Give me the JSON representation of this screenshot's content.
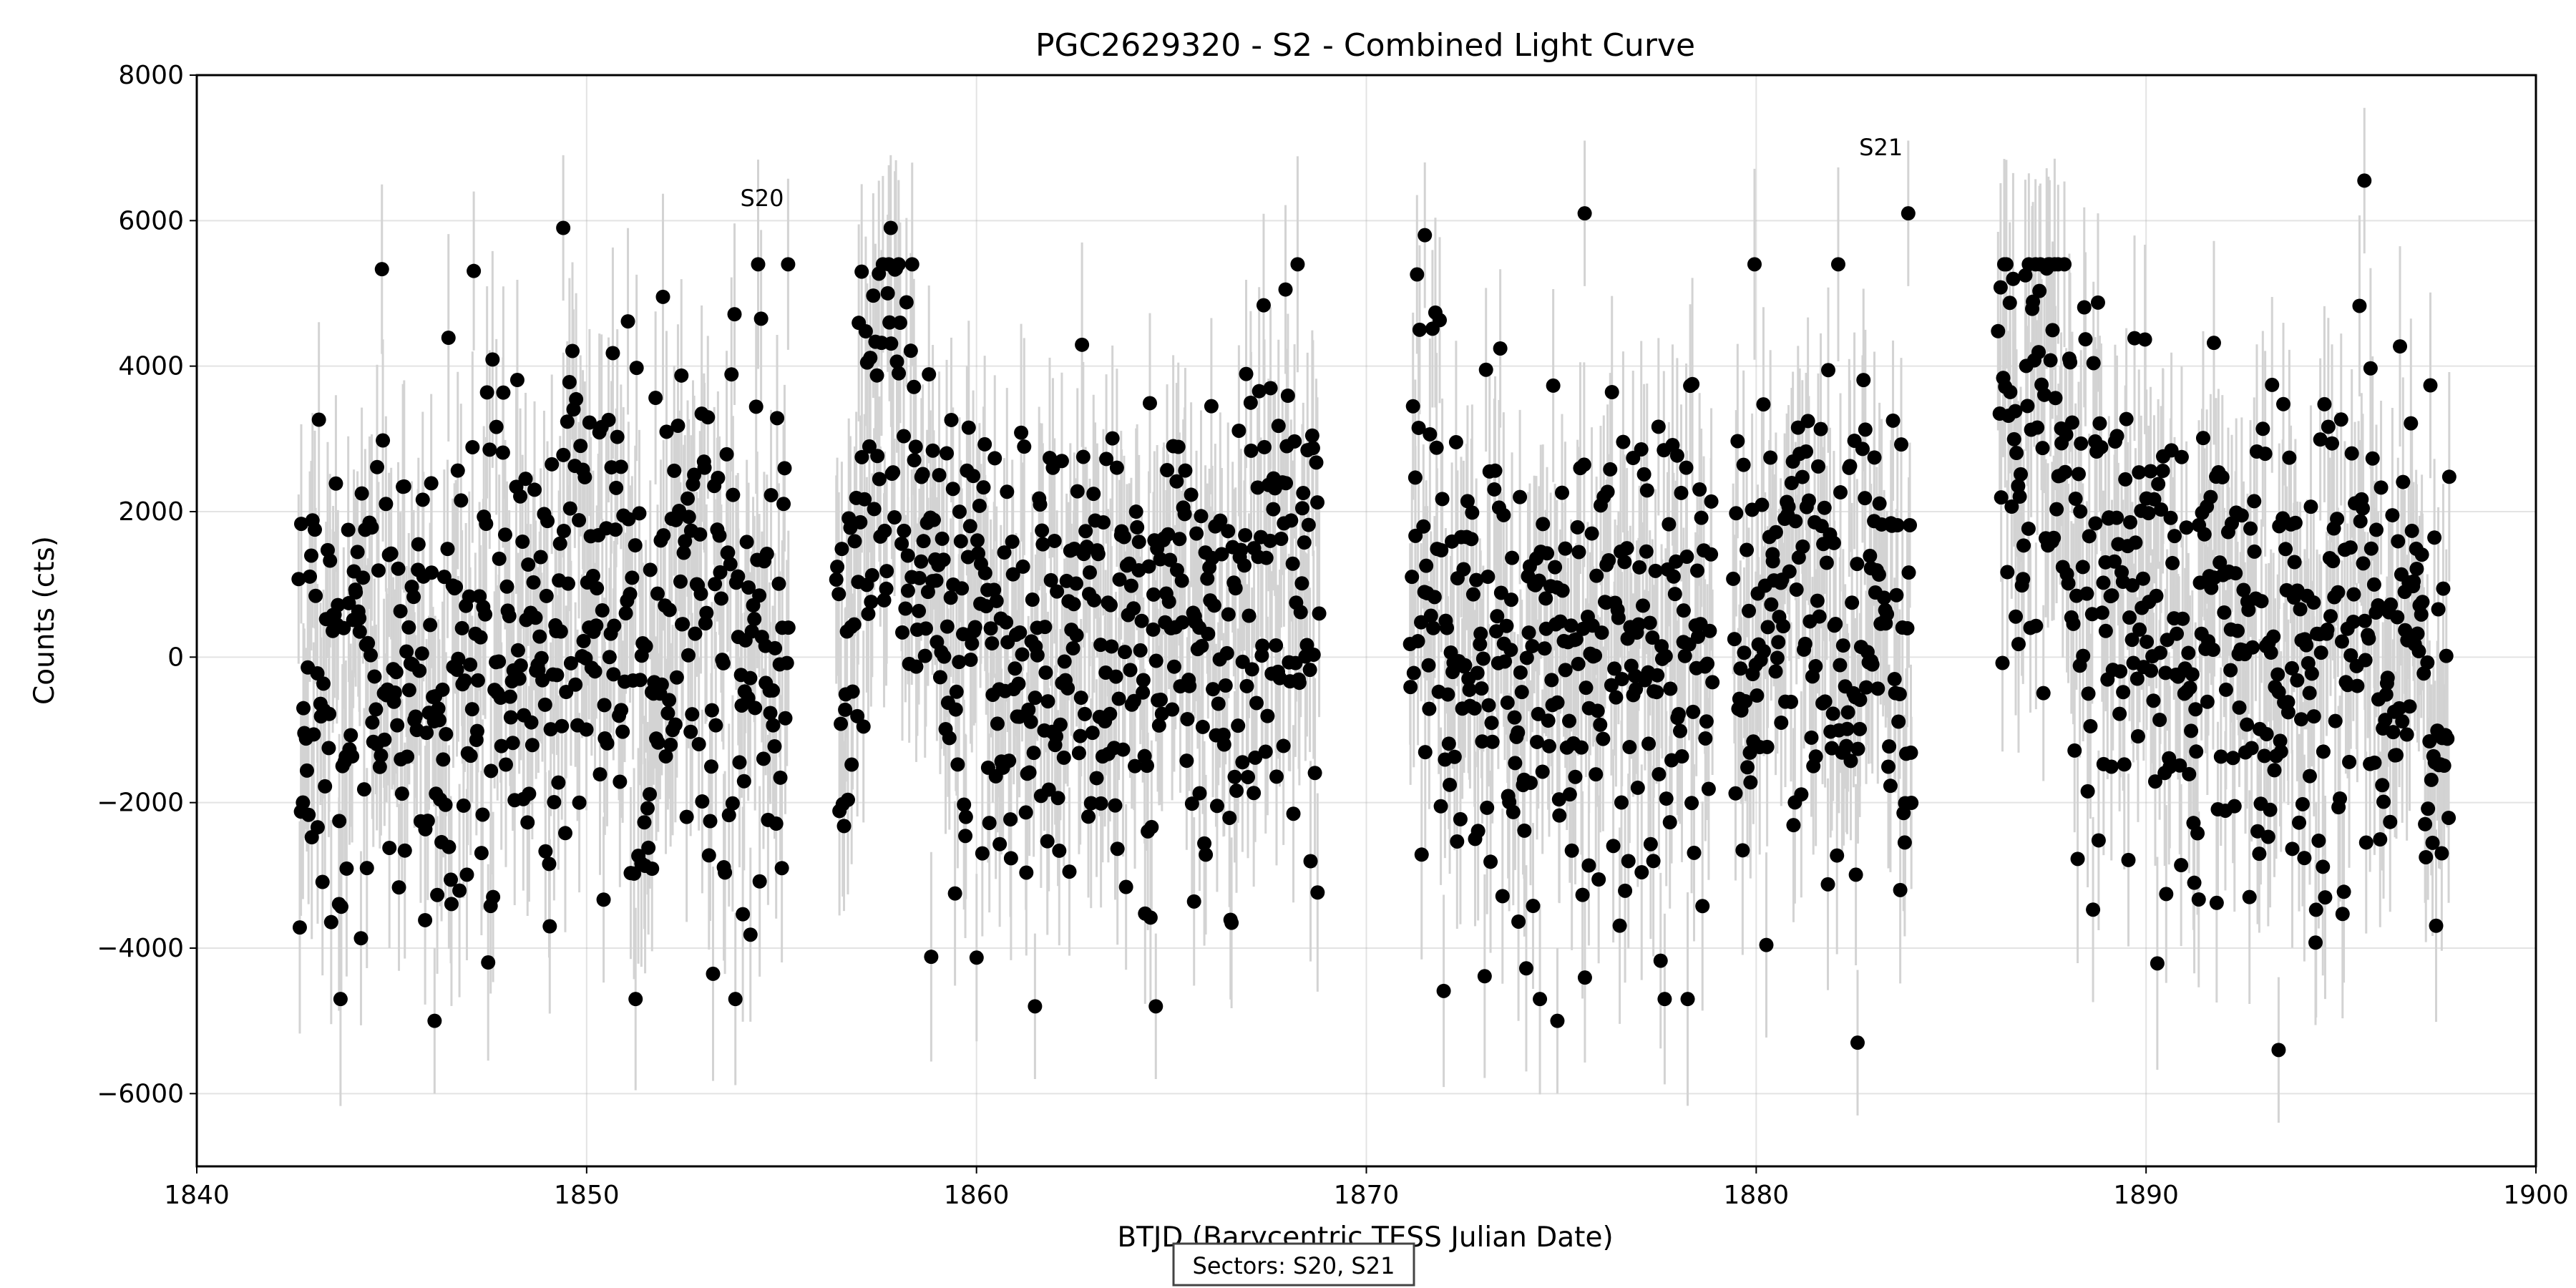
{
  "chart_data": {
    "type": "scatter",
    "title": "PGC2629320 - S2 - Combined Light Curve",
    "xlabel": "BTJD (Barycentric TESS Julian Date)",
    "ylabel": "Counts (cts)",
    "xlim": [
      1840,
      1900
    ],
    "ylim": [
      -7000,
      8000
    ],
    "xticks": [
      1840,
      1850,
      1860,
      1870,
      1880,
      1890,
      1900
    ],
    "yticks": [
      -6000,
      -4000,
      -2000,
      0,
      2000,
      4000,
      6000,
      8000
    ],
    "grid": true,
    "marker_color": "#000000",
    "errorbar_color": "#d3d3d3",
    "annotations": [
      {
        "text": "S20",
        "x": 1854.5,
        "y": 6200
      },
      {
        "text": "S21",
        "x": 1883.2,
        "y": 6900
      }
    ],
    "legend": {
      "text": "Sectors: S20, S21",
      "placement": "bottom-center"
    },
    "segments": [
      {
        "start": 1842.6,
        "end": 1855.2,
        "trend": [
          [
            1842.6,
            -300
          ],
          [
            1847,
            -200
          ],
          [
            1850,
            300
          ],
          [
            1855.2,
            0
          ]
        ],
        "spread": 2100,
        "err": 1200
      },
      {
        "start": 1856.4,
        "end": 1868.8,
        "trend": [
          [
            1856.4,
            0
          ],
          [
            1857.5,
            3500
          ],
          [
            1859,
            800
          ],
          [
            1861,
            -400
          ],
          [
            1865,
            300
          ],
          [
            1868.8,
            1500
          ]
        ],
        "spread": 2000,
        "err": 1200
      },
      {
        "start": 1871.1,
        "end": 1878.9,
        "trend": [
          [
            1871.1,
            1500
          ],
          [
            1873,
            0
          ],
          [
            1876,
            0
          ],
          [
            1878.9,
            0
          ]
        ],
        "spread": 2100,
        "err": 1200
      },
      {
        "start": 1879.4,
        "end": 1884.0,
        "trend": [
          [
            1879.4,
            0
          ],
          [
            1881,
            1000
          ],
          [
            1884.0,
            0
          ]
        ],
        "spread": 2000,
        "err": 1200
      },
      {
        "start": 1886.2,
        "end": 1897.8,
        "trend": [
          [
            1886.2,
            3500
          ],
          [
            1887.5,
            3000
          ],
          [
            1889,
            1000
          ],
          [
            1893,
            0
          ],
          [
            1897.8,
            -300
          ]
        ],
        "spread": 2000,
        "err": 1200
      }
    ],
    "outliers": [
      {
        "x": 1849.4,
        "y": 5900
      },
      {
        "x": 1846.1,
        "y": -5000
      },
      {
        "x": 1857.8,
        "y": 5900
      },
      {
        "x": 1861.5,
        "y": -4800
      },
      {
        "x": 1864.6,
        "y": -4800
      },
      {
        "x": 1871.5,
        "y": 5800
      },
      {
        "x": 1875.6,
        "y": 6100
      },
      {
        "x": 1874.9,
        "y": -5000
      },
      {
        "x": 1883.9,
        "y": 6100
      },
      {
        "x": 1882.6,
        "y": -5300
      },
      {
        "x": 1895.6,
        "y": 6550
      },
      {
        "x": 1893.4,
        "y": -5400
      }
    ]
  }
}
